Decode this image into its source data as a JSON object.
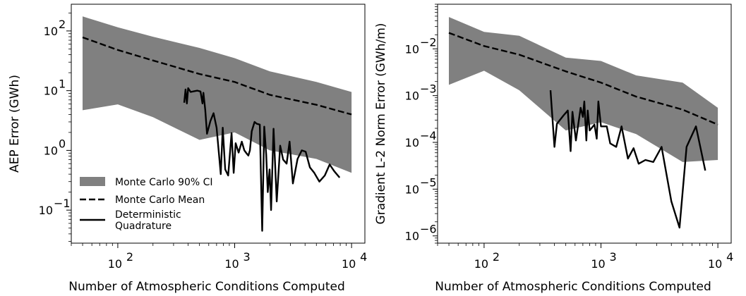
{
  "chart_data": [
    {
      "type": "line",
      "xlabel": "Number of Atmospheric Conditions Computed",
      "ylabel": "AEP Error (GWh)",
      "xscale": "log",
      "yscale": "log",
      "xlim": [
        40,
        13000
      ],
      "ylim": [
        0.028,
        280
      ],
      "xticks": [
        {
          "value": 100,
          "base": "10",
          "exp": "2"
        },
        {
          "value": 1000,
          "base": "10",
          "exp": "3"
        },
        {
          "value": 10000,
          "base": "10",
          "exp": "4"
        }
      ],
      "yticks": [
        {
          "value": 0.1,
          "base": "10",
          "exp": "−1"
        },
        {
          "value": 1,
          "base": "10",
          "exp": "0"
        },
        {
          "value": 10,
          "base": "10",
          "exp": "1"
        },
        {
          "value": 100,
          "base": "10",
          "exp": "2"
        }
      ],
      "legend": {
        "location": "lower-left",
        "entries": [
          {
            "label": "Monte Carlo 90% CI",
            "style": "band"
          },
          {
            "label": "Monte Carlo Mean",
            "style": "dashed"
          },
          {
            "label": "Deterministic",
            "label2": "Quadrature",
            "style": "solid"
          }
        ]
      },
      "series": [
        {
          "name": "Monte Carlo 90% CI",
          "kind": "band",
          "color": "#808080",
          "x": [
            50,
            100,
            200,
            500,
            1000,
            2000,
            5000,
            10000
          ],
          "upper": [
            175,
            115,
            80,
            52,
            35,
            21,
            14,
            9.5
          ],
          "lower": [
            4.7,
            5.9,
            3.6,
            1.5,
            2.0,
            1.0,
            0.72,
            0.42
          ]
        },
        {
          "name": "Monte Carlo Mean",
          "kind": "dashed",
          "color": "#000000",
          "x": [
            50,
            100,
            200,
            500,
            1000,
            2000,
            5000,
            10000
          ],
          "y": [
            78,
            48,
            32,
            19,
            14,
            8.5,
            5.8,
            4.0
          ]
        },
        {
          "name": "Deterministic Quadrature",
          "kind": "solid",
          "color": "#000000",
          "x": [
            370,
            380,
            390,
            400,
            420,
            450,
            480,
            510,
            530,
            540,
            560,
            580,
            620,
            660,
            700,
            760,
            790,
            830,
            880,
            940,
            980,
            1020,
            1080,
            1150,
            1210,
            1270,
            1310,
            1350,
            1400,
            1480,
            1540,
            1640,
            1720,
            1790,
            1860,
            1920,
            1990,
            2050,
            2150,
            2290,
            2450,
            2600,
            2780,
            2950,
            3150,
            3450,
            3750,
            4050,
            4400,
            4800,
            5300,
            5900,
            6500,
            7100,
            7900
          ],
          "y": [
            6.3,
            10.5,
            6.1,
            11.0,
            9.5,
            9.8,
            10.0,
            9.7,
            6.1,
            9.2,
            4.8,
            1.9,
            3.1,
            4.2,
            2.4,
            0.4,
            2.4,
            0.48,
            0.38,
            1.95,
            0.42,
            1.32,
            0.92,
            1.4,
            1.0,
            0.88,
            0.82,
            1.0,
            2.1,
            3.0,
            2.8,
            2.7,
            0.045,
            2.5,
            0.85,
            0.2,
            0.48,
            0.1,
            2.3,
            0.14,
            1.2,
            0.7,
            0.6,
            1.4,
            0.28,
            0.72,
            1.0,
            0.95,
            0.52,
            0.42,
            0.3,
            0.38,
            0.58,
            0.45,
            0.35
          ]
        }
      ]
    },
    {
      "type": "line",
      "xlabel": "Number of Atmospheric Conditions Computed",
      "ylabel": "Gradient L-2 Norm Error (GWh/m)",
      "xscale": "log",
      "yscale": "log",
      "xlim": [
        40,
        13000
      ],
      "ylim": [
        7e-07,
        0.09
      ],
      "xticks": [
        {
          "value": 100,
          "base": "10",
          "exp": "2"
        },
        {
          "value": 1000,
          "base": "10",
          "exp": "3"
        },
        {
          "value": 10000,
          "base": "10",
          "exp": "4"
        }
      ],
      "yticks": [
        {
          "value": 1e-06,
          "base": "10",
          "exp": "−6"
        },
        {
          "value": 1e-05,
          "base": "10",
          "exp": "−5"
        },
        {
          "value": 0.0001,
          "base": "10",
          "exp": "−4"
        },
        {
          "value": 0.001,
          "base": "10",
          "exp": "−3"
        },
        {
          "value": 0.01,
          "base": "10",
          "exp": "−2"
        }
      ],
      "series": [
        {
          "name": "Monte Carlo 90% CI",
          "kind": "band",
          "color": "#808080",
          "x": [
            50,
            100,
            200,
            500,
            1000,
            2000,
            5000,
            10000
          ],
          "upper": [
            0.048,
            0.023,
            0.019,
            0.0065,
            0.0055,
            0.0027,
            0.0019,
            0.00055
          ],
          "lower": [
            0.0017,
            0.0034,
            0.0013,
            0.00018,
            0.00027,
            0.00015,
            3.8e-05,
            4.2e-05
          ]
        },
        {
          "name": "Monte Carlo Mean",
          "kind": "dashed",
          "color": "#000000",
          "x": [
            50,
            100,
            200,
            500,
            1000,
            2000,
            5000,
            10000
          ],
          "y": [
            0.022,
            0.0115,
            0.0075,
            0.0033,
            0.0019,
            0.00095,
            0.0005,
            0.00024
          ]
        },
        {
          "name": "Deterministic Quadrature",
          "kind": "solid",
          "color": "#000000",
          "x": [
            370,
            400,
            420,
            480,
            520,
            550,
            570,
            610,
            670,
            700,
            720,
            750,
            770,
            800,
            880,
            920,
            950,
            1000,
            1120,
            1200,
            1350,
            1500,
            1700,
            1900,
            2100,
            2400,
            2800,
            3300,
            4000,
            4700,
            5400,
            6500,
            7800
          ],
          "y": [
            0.0013,
            8e-05,
            0.00025,
            0.00038,
            0.00048,
            6.5e-05,
            0.00045,
            0.00011,
            0.00055,
            0.00035,
            0.00075,
            0.00011,
            0.00048,
            0.00018,
            0.00024,
            0.00012,
            0.00075,
            0.00022,
            0.00022,
            9.5e-05,
            8e-05,
            0.00022,
            4.5e-05,
            7.5e-05,
            3.5e-05,
            4.2e-05,
            3.8e-05,
            8e-05,
            5.5e-06,
            1.5e-06,
            8e-05,
            0.00022,
            2.5e-05
          ]
        }
      ]
    }
  ]
}
